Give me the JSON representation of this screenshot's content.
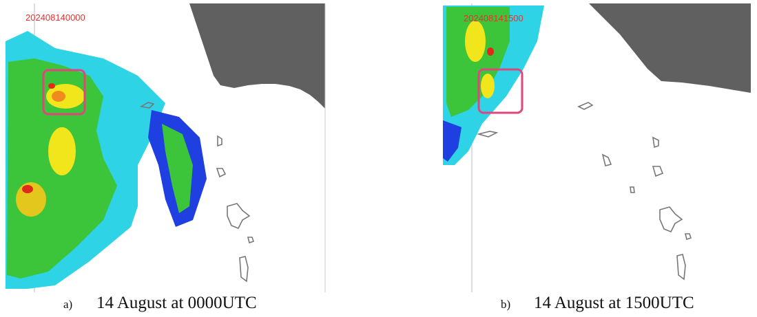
{
  "panels": [
    {
      "timestamp": "202408140000",
      "label": "a)",
      "caption": "14 August at 0000UTC"
    },
    {
      "timestamp": "202408141500",
      "label": "b)",
      "caption": "14 August at 1500UTC"
    }
  ]
}
